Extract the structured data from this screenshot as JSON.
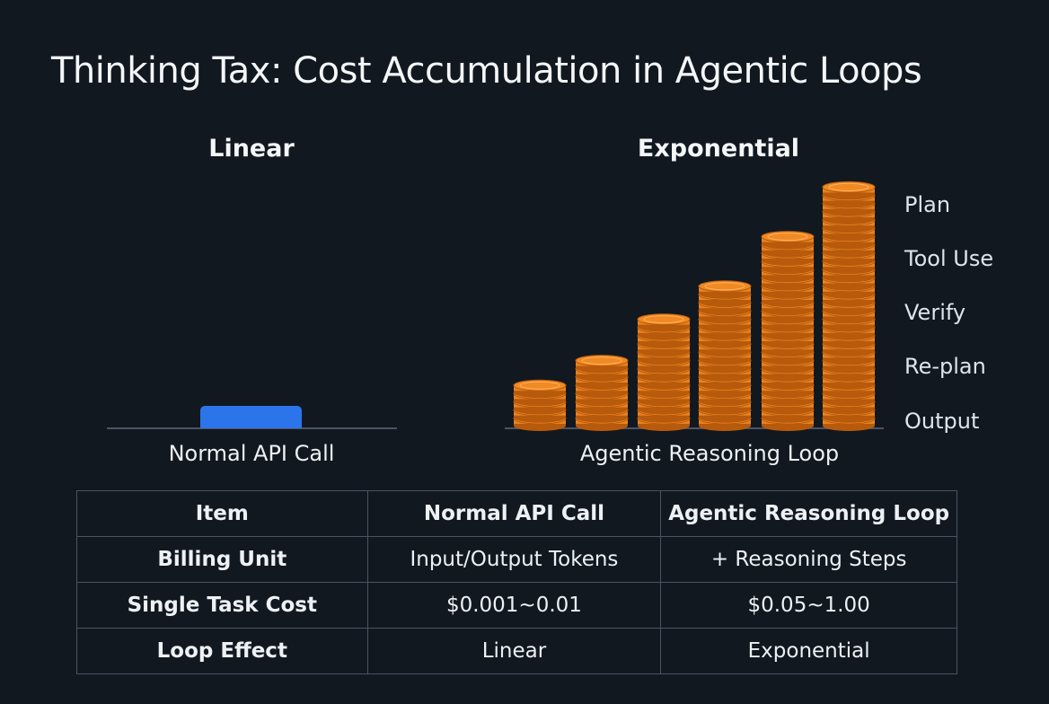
{
  "title": "Thinking Tax: Cost Accumulation in Agentic Loops",
  "panels": {
    "linear": {
      "heading": "Linear",
      "caption": "Normal API Call"
    },
    "exponential": {
      "heading": "Exponential",
      "caption": "Agentic Reasoning Loop"
    }
  },
  "stages": [
    "Plan",
    "Tool Use",
    "Verify",
    "Re-plan",
    "Output"
  ],
  "coin_stacks": [
    5,
    8,
    13,
    17,
    23,
    29
  ],
  "colors": {
    "background": "#111820",
    "bar": "#2c74ea",
    "coin": "#f08a24",
    "coin_edge": "#b85a0c"
  },
  "table": {
    "headers": [
      "Item",
      "Normal API Call",
      "Agentic Reasoning Loop"
    ],
    "rows": [
      [
        "Billing Unit",
        "Input/Output Tokens",
        "+ Reasoning Steps"
      ],
      [
        "Single Task Cost",
        "$0.001~0.01",
        "$0.05~1.00"
      ],
      [
        "Loop Effect",
        "Linear",
        "Exponential"
      ]
    ]
  }
}
